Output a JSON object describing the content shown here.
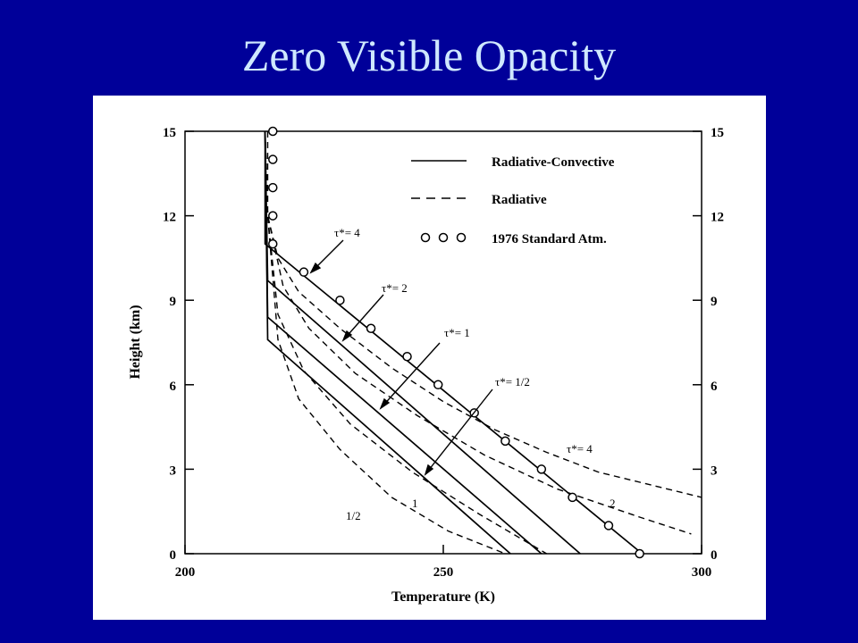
{
  "slide": {
    "title": "Zero Visible Opacity"
  },
  "chart_data": {
    "type": "line",
    "xlabel": "Temperature (K)",
    "ylabel": "Height (km)",
    "xlim": [
      200,
      300
    ],
    "ylim": [
      0,
      15
    ],
    "xticks": [
      "200",
      "250",
      "300"
    ],
    "yticks": [
      "0",
      "3",
      "6",
      "9",
      "12",
      "15"
    ],
    "legend": {
      "placement": "top-right",
      "entries": [
        {
          "label": "Radiative-Convective",
          "style": "solid"
        },
        {
          "label": "Radiative",
          "style": "dashed"
        },
        {
          "label": "1976 Standard Atm.",
          "style": "circles"
        }
      ]
    },
    "series": [
      {
        "label": "2",
        "style": "solid",
        "x": [
          215.5,
          215.5,
          288.5
        ],
        "y": [
          15,
          11,
          0
        ]
      },
      {
        "label": "1",
        "style": "solid",
        "x": [
          215.5,
          216,
          276.5
        ],
        "y": [
          15,
          9.7,
          0
        ]
      },
      {
        "label": "1/2",
        "style": "solid",
        "x": [
          215.5,
          216,
          269
        ],
        "y": [
          15,
          8.4,
          0
        ]
      },
      {
        "style": "solid",
        "x": [
          215.5,
          216,
          263
        ],
        "y": [
          15,
          7.6,
          0
        ]
      },
      {
        "label": "τ*= 4",
        "style": "dashed",
        "x": [
          216,
          216,
          218,
          222,
          230,
          240,
          250,
          260,
          270,
          280,
          300
        ],
        "y": [
          15,
          12,
          10.5,
          9.3,
          8,
          6.6,
          5.4,
          4.4,
          3.6,
          2.9,
          2.0
        ]
      },
      {
        "style": "dashed",
        "x": [
          215.5,
          216,
          219,
          224,
          233,
          245,
          258,
          272,
          288,
          298
        ],
        "y": [
          15,
          12,
          9.5,
          8,
          6.4,
          4.9,
          3.5,
          2.3,
          1.3,
          0.7
        ]
      },
      {
        "style": "dashed",
        "x": [
          215.5,
          216,
          218,
          223,
          232,
          244,
          257,
          270
        ],
        "y": [
          15,
          12,
          8.5,
          6.5,
          4.6,
          2.9,
          1.4,
          0
        ]
      },
      {
        "style": "dashed",
        "x": [
          215.5,
          216,
          218,
          222,
          230,
          240,
          251,
          262
        ],
        "y": [
          15,
          12,
          7.6,
          5.5,
          3.7,
          2.0,
          0.8,
          0
        ]
      }
    ],
    "standard_atmosphere": {
      "x": [
        217,
        217,
        217,
        217,
        217,
        223,
        230,
        236,
        243,
        249,
        256,
        262,
        269,
        275,
        282,
        288
      ],
      "y": [
        15,
        14,
        13,
        12,
        11,
        10,
        9,
        8,
        7,
        6,
        5,
        4,
        3,
        2,
        1,
        0
      ]
    },
    "annotations": [
      {
        "text": "τ*= 4"
      },
      {
        "text": "τ*= 2"
      },
      {
        "text": "τ*= 1"
      },
      {
        "text": "τ*= 1/2"
      },
      {
        "text": "τ*= 4"
      },
      {
        "text": "2"
      },
      {
        "text": "1"
      },
      {
        "text": "1/2"
      }
    ]
  }
}
